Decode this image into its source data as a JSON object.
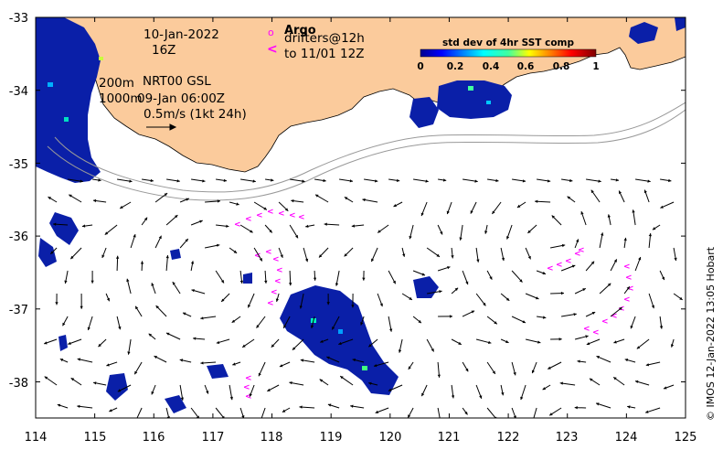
{
  "map": {
    "x_ticks": [
      "114",
      "115",
      "116",
      "117",
      "118",
      "119",
      "120",
      "121",
      "122",
      "123",
      "124",
      "125"
    ],
    "y_ticks": [
      "-33",
      "-34",
      "-35",
      "-36",
      "-37",
      "-38"
    ],
    "x_range": [
      114,
      125
    ],
    "y_range": [
      -38.5,
      -33
    ],
    "land_color": "#fbcb9c"
  },
  "annotations": {
    "date": "10-Jan-2022",
    "hour": "16Z",
    "depth_200": "200m",
    "depth_1000": "1000m",
    "product": "NRT00 GSL",
    "product_time": "09-Jan 06:00Z",
    "scale": "0.5m/s (1kt 24h)"
  },
  "legend": {
    "argo_label": "Argo",
    "argo_symbol": "o",
    "drifter_symbol": "<",
    "drifters_line1": "drifters@12h",
    "drifters_line2": "to 11/01 12Z",
    "marker_color": "#ff00ff"
  },
  "colorbar": {
    "title": "std dev of 4hr SST comp",
    "ticks": [
      "0",
      "0.2",
      "0.4",
      "0.6",
      "0.8",
      "1"
    ],
    "range": [
      0,
      1
    ]
  },
  "credit": "© IMOS 12-Jan-2022 13:05 Hobart"
}
